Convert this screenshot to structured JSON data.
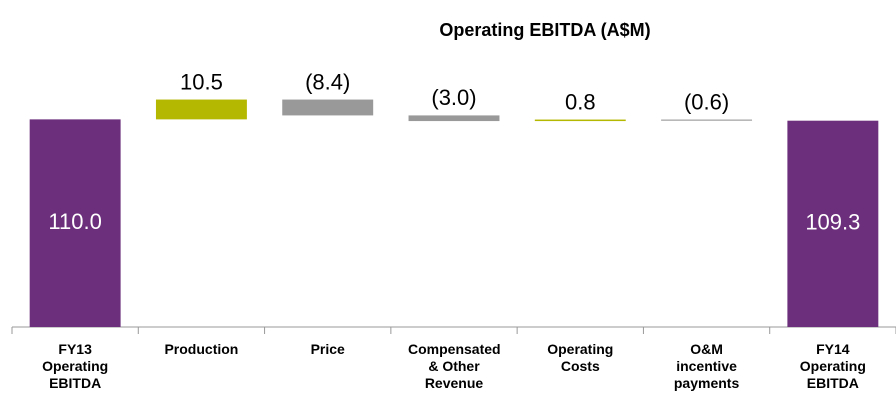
{
  "chart_data": {
    "type": "waterfall",
    "title": "Operating EBITDA (A$M)",
    "categories": [
      "FY13 Operating EBITDA",
      "Production",
      "Price",
      "Compensated & Other Revenue",
      "Operating Costs",
      "O&M incentive payments",
      "FY14 Operating EBITDA"
    ],
    "values": [
      110.0,
      10.5,
      -8.4,
      -3.0,
      0.8,
      -0.6,
      109.3
    ],
    "value_labels": [
      "110.0",
      "10.5",
      "(8.4)",
      "(3.0)",
      "0.8",
      "(0.6)",
      "109.3"
    ],
    "measure": [
      "total",
      "relative",
      "relative",
      "relative",
      "relative",
      "relative",
      "total"
    ],
    "total_color": "#6b2f7b",
    "increase_color": "#b5b800",
    "decrease_color": "#999999",
    "ylim": [
      0,
      160
    ]
  }
}
